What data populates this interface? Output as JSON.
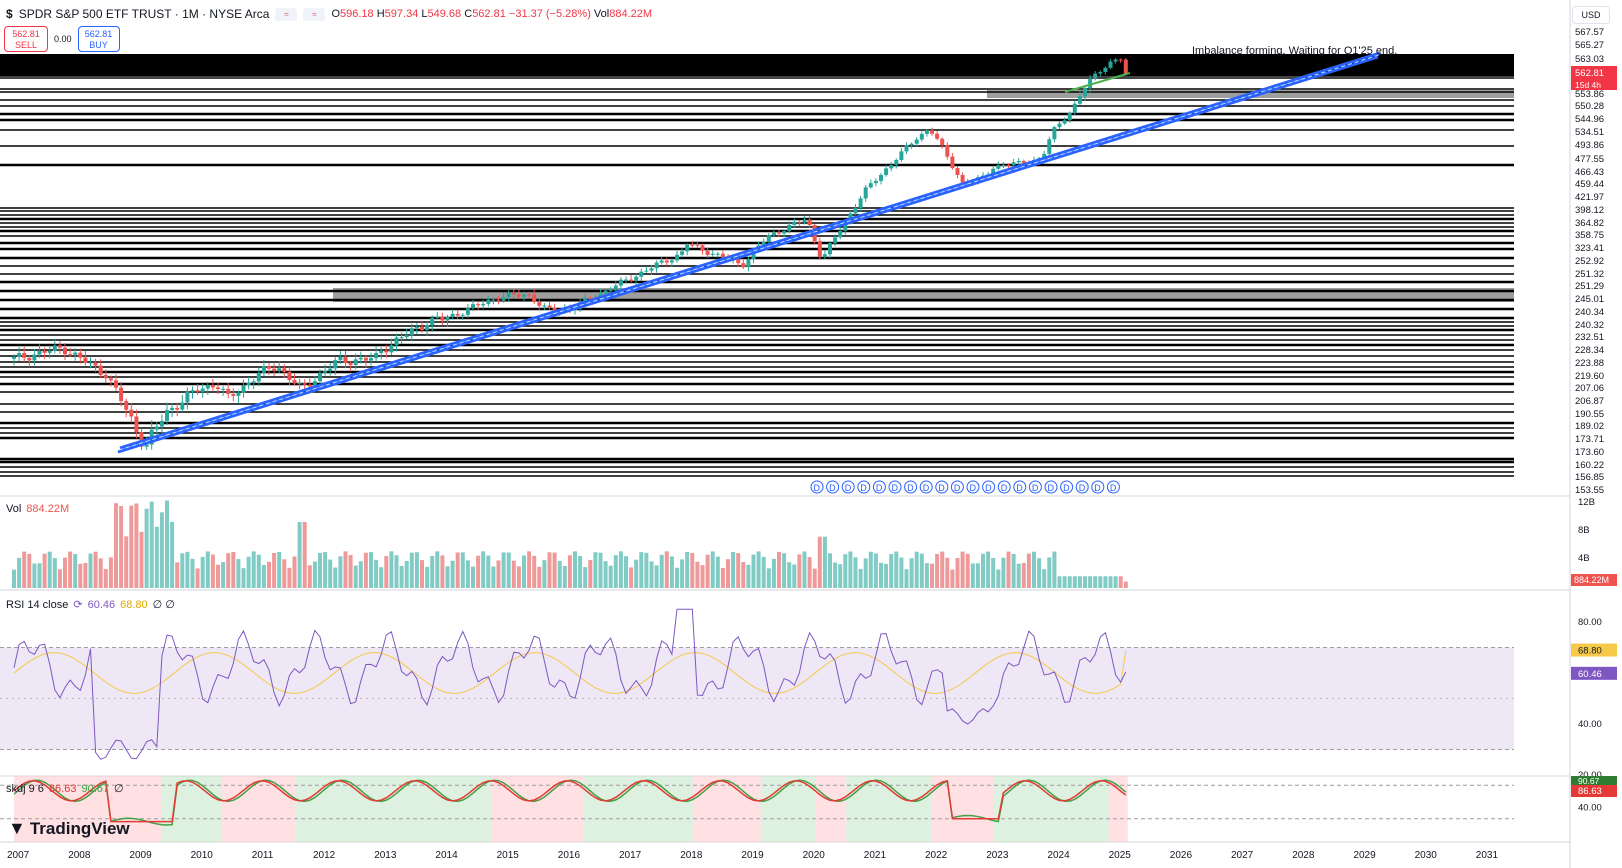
{
  "header": {
    "dollar": "$",
    "title": "SPDR S&P 500 ETF TRUST · 1M · NYSE Arca",
    "badge": "≈",
    "ohlc": {
      "o_label": "O",
      "o": "596.18",
      "h_label": "H",
      "h": "597.34",
      "l_label": "L",
      "l": "549.68",
      "c_label": "C",
      "c": "562.81",
      "chg": "−31.37 (−5.28%)",
      "vol_label": "Vol",
      "vol": "884.22M"
    }
  },
  "trade": {
    "sell_price": "562.81",
    "sell_label": "SELL",
    "spread": "0.00",
    "buy_price": "562.81",
    "buy_label": "BUY"
  },
  "currency": "USD",
  "colors": {
    "up": "#26a69a",
    "down": "#ef5350",
    "trend": "#2962ff",
    "rsi": "#7e57c2",
    "rsi_ma": "#f7c948",
    "skdj_k": "#e53935",
    "skdj_d": "#43a047"
  },
  "annotation": "Imbalance forming. Waiting for Q1'25 end.",
  "price_axis": {
    "ticks": [
      "567.57",
      "565.27",
      "563.03",
      "553.86",
      "550.28",
      "544.96",
      "534.51",
      "493.86",
      "477.55",
      "466.43",
      "459.44",
      "421.97",
      "398.12",
      "364.82",
      "358.75",
      "323.41",
      "252.92",
      "251.32",
      "251.29",
      "245.01",
      "240.34",
      "240.32",
      "232.51",
      "228.34",
      "223.88",
      "219.60",
      "207.06",
      "206.87",
      "190.55",
      "189.02",
      "173.71",
      "173.60",
      "160.22",
      "156.85",
      "153.55"
    ],
    "last_price": "562.81",
    "countdown": "15d 4h"
  },
  "dividend_marker": "D",
  "time_axis": [
    "2007",
    "2008",
    "2009",
    "2010",
    "2011",
    "2012",
    "2013",
    "2014",
    "2015",
    "2016",
    "2017",
    "2018",
    "2019",
    "2020",
    "2021",
    "2022",
    "2023",
    "2024",
    "2025",
    "2026",
    "2027",
    "2028",
    "2029",
    "2030",
    "2031"
  ],
  "volume": {
    "label": "Vol",
    "value": "884.22M",
    "ticks": [
      "12B",
      "8B",
      "4B"
    ],
    "last": "884.22M"
  },
  "rsi": {
    "label": "RSI 14 close",
    "value": "60.46",
    "ma": "68.80",
    "extra": "∅ ∅",
    "ticks": [
      "80.00",
      "40.00",
      "20.00"
    ],
    "last_ma": "68.80",
    "last": "60.46"
  },
  "skdj": {
    "label": "skdj 9 6",
    "k": "86.63",
    "d": "90.67",
    "extra": "∅",
    "ticks": [
      "40.00"
    ],
    "last_d": "90.67",
    "last_k": "86.63"
  },
  "brand": "TradingView",
  "chart_data": {
    "type": "candlestick",
    "title": "SPDR S&P 500 ETF TRUST · 1M · NYSE Arca",
    "x": [
      "2007",
      "2008",
      "2009",
      "2010",
      "2011",
      "2012",
      "2013",
      "2014",
      "2015",
      "2016",
      "2017",
      "2018",
      "2019",
      "2020",
      "2021",
      "2022",
      "2023",
      "2024",
      "2025"
    ],
    "close_yearly": [
      146,
      145,
      90,
      115,
      126,
      128,
      146,
      183,
      205,
      203,
      224,
      266,
      250,
      320,
      375,
      475,
      385,
      475,
      590
    ],
    "last_close": 562.81,
    "last_bar": {
      "open": 596.18,
      "high": 597.34,
      "low": 549.68,
      "close": 562.81
    }
  }
}
